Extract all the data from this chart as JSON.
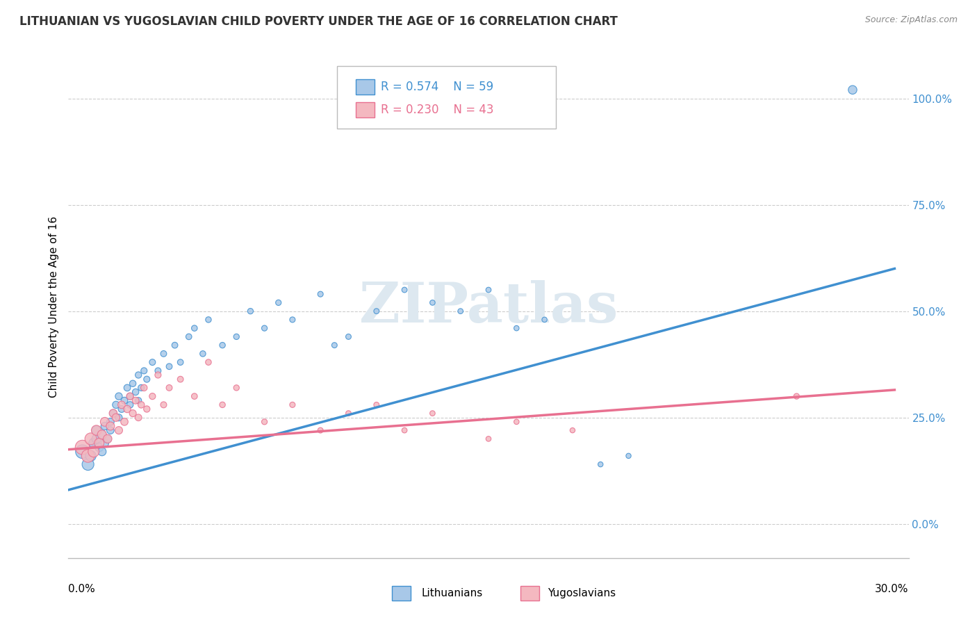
{
  "title": "LITHUANIAN VS YUGOSLAVIAN CHILD POVERTY UNDER THE AGE OF 16 CORRELATION CHART",
  "source": "Source: ZipAtlas.com",
  "ylabel": "Child Poverty Under the Age of 16",
  "xlim": [
    0.0,
    0.3
  ],
  "ylim": [
    -0.08,
    1.1
  ],
  "yticks": [
    0.0,
    0.25,
    0.5,
    0.75,
    1.0
  ],
  "ytick_labels": [
    "0.0%",
    "25.0%",
    "50.0%",
    "75.0%",
    "100.0%"
  ],
  "legend_blue_label": "Lithuanians",
  "legend_pink_label": "Yugoslavians",
  "r_blue": "0.574",
  "n_blue": "59",
  "r_pink": "0.230",
  "n_pink": "43",
  "blue_color": "#a8c8e8",
  "pink_color": "#f4b8c0",
  "blue_line_color": "#4090d0",
  "pink_line_color": "#e87090",
  "watermark_color": "#dde8f0",
  "background_color": "#ffffff",
  "grid_color": "#cccccc",
  "blue_x": [
    0.005,
    0.007,
    0.008,
    0.009,
    0.01,
    0.01,
    0.011,
    0.012,
    0.012,
    0.013,
    0.013,
    0.014,
    0.015,
    0.015,
    0.016,
    0.017,
    0.018,
    0.018,
    0.019,
    0.02,
    0.021,
    0.022,
    0.022,
    0.023,
    0.024,
    0.025,
    0.025,
    0.026,
    0.027,
    0.028,
    0.03,
    0.032,
    0.034,
    0.036,
    0.038,
    0.04,
    0.043,
    0.045,
    0.048,
    0.05,
    0.055,
    0.06,
    0.065,
    0.07,
    0.075,
    0.08,
    0.09,
    0.095,
    0.1,
    0.11,
    0.12,
    0.13,
    0.14,
    0.15,
    0.16,
    0.17,
    0.19,
    0.2,
    0.28
  ],
  "blue_y": [
    0.17,
    0.14,
    0.16,
    0.19,
    0.2,
    0.22,
    0.18,
    0.17,
    0.21,
    0.19,
    0.23,
    0.2,
    0.24,
    0.22,
    0.26,
    0.28,
    0.3,
    0.25,
    0.27,
    0.29,
    0.32,
    0.3,
    0.28,
    0.33,
    0.31,
    0.35,
    0.29,
    0.32,
    0.36,
    0.34,
    0.38,
    0.36,
    0.4,
    0.37,
    0.42,
    0.38,
    0.44,
    0.46,
    0.4,
    0.48,
    0.42,
    0.44,
    0.5,
    0.46,
    0.52,
    0.48,
    0.54,
    0.42,
    0.44,
    0.5,
    0.55,
    0.52,
    0.5,
    0.55,
    0.46,
    0.48,
    0.14,
    0.16,
    1.02
  ],
  "blue_sizes": [
    200,
    150,
    120,
    100,
    90,
    85,
    80,
    75,
    70,
    68,
    65,
    62,
    60,
    58,
    56,
    55,
    54,
    52,
    50,
    50,
    48,
    47,
    46,
    45,
    45,
    44,
    43,
    43,
    42,
    42,
    41,
    40,
    40,
    39,
    39,
    38,
    38,
    37,
    37,
    36,
    36,
    35,
    35,
    34,
    34,
    33,
    33,
    32,
    32,
    31,
    31,
    30,
    30,
    30,
    29,
    29,
    28,
    28,
    80
  ],
  "pink_x": [
    0.005,
    0.007,
    0.008,
    0.009,
    0.01,
    0.011,
    0.012,
    0.013,
    0.014,
    0.015,
    0.016,
    0.017,
    0.018,
    0.019,
    0.02,
    0.021,
    0.022,
    0.023,
    0.024,
    0.025,
    0.026,
    0.027,
    0.028,
    0.03,
    0.032,
    0.034,
    0.036,
    0.04,
    0.045,
    0.05,
    0.055,
    0.06,
    0.07,
    0.08,
    0.09,
    0.1,
    0.11,
    0.12,
    0.13,
    0.15,
    0.16,
    0.18,
    0.26
  ],
  "pink_y": [
    0.18,
    0.16,
    0.2,
    0.17,
    0.22,
    0.19,
    0.21,
    0.24,
    0.2,
    0.23,
    0.26,
    0.25,
    0.22,
    0.28,
    0.24,
    0.27,
    0.3,
    0.26,
    0.29,
    0.25,
    0.28,
    0.32,
    0.27,
    0.3,
    0.35,
    0.28,
    0.32,
    0.34,
    0.3,
    0.38,
    0.28,
    0.32,
    0.24,
    0.28,
    0.22,
    0.26,
    0.28,
    0.22,
    0.26,
    0.2,
    0.24,
    0.22,
    0.3
  ],
  "pink_sizes": [
    220,
    180,
    150,
    130,
    110,
    100,
    90,
    85,
    80,
    75,
    70,
    65,
    62,
    60,
    58,
    56,
    54,
    52,
    50,
    48,
    46,
    45,
    44,
    43,
    42,
    41,
    40,
    39,
    38,
    37,
    36,
    35,
    34,
    33,
    32,
    31,
    31,
    30,
    30,
    29,
    29,
    28,
    35
  ],
  "blue_trend_x": [
    0.0,
    0.295
  ],
  "blue_trend_y": [
    0.08,
    0.6
  ],
  "pink_trend_x": [
    0.0,
    0.295
  ],
  "pink_trend_y": [
    0.175,
    0.315
  ]
}
